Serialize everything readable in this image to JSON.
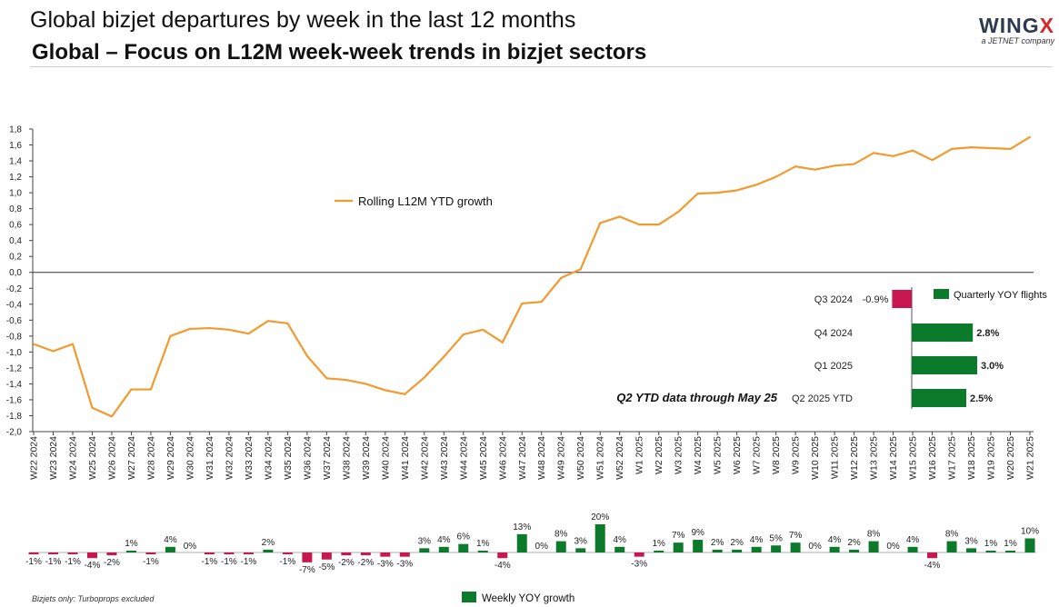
{
  "header": {
    "supertitle": "Global bizjet departures by week in the last 12 months",
    "title": "Global – Focus on L12M week-week trends in bizjet sectors",
    "logo_text": "WINGX",
    "logo_subtext": "a JETNET company"
  },
  "footnote": "Bizjets only: Turboprops excluded",
  "colors": {
    "line": "#f39a2e",
    "positive": "#0b7a2a",
    "negative": "#c8174f",
    "axis": "#444444"
  },
  "chart_data": [
    {
      "type": "line",
      "series": [
        {
          "name": "Rolling L12M YTD growth",
          "values": [
            -0.9,
            -0.99,
            -0.9,
            -1.7,
            -1.81,
            -1.47,
            -1.47,
            -0.8,
            -0.71,
            -0.7,
            -0.72,
            -0.77,
            -0.61,
            -0.64,
            -1.05,
            -1.33,
            -1.35,
            -1.4,
            -1.48,
            -1.53,
            -1.32,
            -1.06,
            -0.78,
            -0.72,
            -0.88,
            -0.39,
            -0.37,
            -0.07,
            0.04,
            0.62,
            0.7,
            0.6,
            0.6,
            0.76,
            0.99,
            1.0,
            1.03,
            1.1,
            1.2,
            1.33,
            1.29,
            1.34,
            1.36,
            1.5,
            1.46,
            1.53,
            1.41,
            1.55,
            1.57,
            1.56,
            1.55,
            1.7
          ]
        }
      ],
      "categories": [
        "W22 2024",
        "W23 2024",
        "W24 2024",
        "W25 2024",
        "W26 2024",
        "W27 2024",
        "W28 2024",
        "W29 2024",
        "W30 2024",
        "W31 2024",
        "W32 2024",
        "W33 2024",
        "W34 2024",
        "W35 2024",
        "W36 2024",
        "W37 2024",
        "W38 2024",
        "W39 2024",
        "W40 2024",
        "W41 2024",
        "W42 2024",
        "W43 2024",
        "W44 2024",
        "W45 2024",
        "W46 2024",
        "W47 2024",
        "W48 2024",
        "W49 2024",
        "W50 2024",
        "W51 2024",
        "W52 2024",
        "W1 2025",
        "W2 2025",
        "W3 2025",
        "W4 2025",
        "W5 2025",
        "W6 2025",
        "W7 2025",
        "W8 2025",
        "W9 2025",
        "W10 2025",
        "W11 2025",
        "W12 2025",
        "W13 2025",
        "W14 2025",
        "W15 2025",
        "W16 2025",
        "W17 2025",
        "W18 2025",
        "W19 2025",
        "W20 2025",
        "W21 2025"
      ],
      "ylim": [
        -2.0,
        1.8
      ],
      "yticks": [
        "1,8",
        "1,6",
        "1,4",
        "1,2",
        "1,0",
        "0,8",
        "0,6",
        "0,4",
        "0,2",
        "0,0",
        "-0,2",
        "-0,4",
        "-0,6",
        "-0,8",
        "-1,0",
        "-1,2",
        "-1,4",
        "-1,6",
        "-1,8",
        "-2,0"
      ],
      "ytick_values": [
        1.8,
        1.6,
        1.4,
        1.2,
        1.0,
        0.8,
        0.6,
        0.4,
        0.2,
        0.0,
        -0.2,
        -0.4,
        -0.6,
        -0.8,
        -1.0,
        -1.2,
        -1.4,
        -1.6,
        -1.8,
        -2.0
      ],
      "legend": {
        "label": "Rolling L12M YTD growth",
        "position": "top-left"
      },
      "zero_line": true,
      "grid": false
    },
    {
      "type": "bar",
      "orientation": "horizontal",
      "categories": [
        "Q3 2024",
        "Q4 2024",
        "Q1 2025",
        "Q2 2025 YTD"
      ],
      "values": [
        -0.9,
        2.8,
        3.0,
        2.5
      ],
      "labels": [
        "-0.9%",
        "2.8%",
        "3.0%",
        "2.5%"
      ],
      "legend": {
        "label": "Quarterly YOY flights",
        "position": "top-right"
      },
      "annotation": "Q2 YTD data through May 25"
    },
    {
      "type": "bar",
      "values": [
        -1,
        -1,
        -1,
        -4,
        -2,
        1,
        -1,
        4,
        0,
        -1,
        -1,
        -1,
        2,
        -1,
        -7,
        -5,
        -2,
        -2,
        -3,
        -3,
        3,
        4,
        6,
        1,
        -4,
        13,
        0,
        8,
        3,
        20,
        4,
        -3,
        1,
        7,
        9,
        2,
        2,
        4,
        5,
        7,
        0,
        4,
        2,
        8,
        0,
        4,
        -4,
        8,
        3,
        1,
        1,
        10
      ],
      "labels": [
        "-1%",
        "-1%",
        "-1%",
        "-4%",
        "-2%",
        "1%",
        "-1%",
        "4%",
        "0%",
        "-1%",
        "-1%",
        "-1%",
        "2%",
        "-1%",
        "-7%",
        "-5%",
        "-2%",
        "-2%",
        "-3%",
        "-3%",
        "3%",
        "4%",
        "6%",
        "1%",
        "-4%",
        "13%",
        "0%",
        "8%",
        "3%",
        "20%",
        "4%",
        "-3%",
        "1%",
        "7%",
        "9%",
        "2%",
        "2%",
        "4%",
        "5%",
        "7%",
        "0%",
        "4%",
        "2%",
        "8%",
        "0%",
        "4%",
        "-4%",
        "8%",
        "3%",
        "1%",
        "1%",
        "10%"
      ],
      "legend": {
        "label": "Weekly YOY growth",
        "position": "bottom-center"
      }
    }
  ]
}
